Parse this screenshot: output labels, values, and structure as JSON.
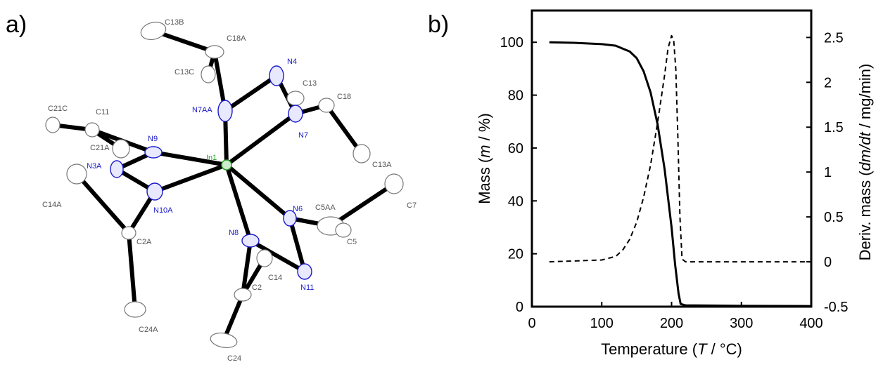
{
  "panel_a": {
    "label": "a)",
    "atoms": {
      "In1": "In1",
      "N4": "N4",
      "N7AA": "N7AA",
      "N7": "N7",
      "N9": "N9",
      "N3A": "N3A",
      "N10A": "N10A",
      "N6": "N6",
      "N8": "N8",
      "N11": "N11",
      "C13B": "C13B",
      "C18A": "C18A",
      "C13C": "C13C",
      "C13": "C13",
      "C18": "C18",
      "C13A": "C13A",
      "C21C": "C21C",
      "C11": "C11",
      "C21A": "C21A",
      "C14A": "C14A",
      "C2A": "C2A",
      "C24A": "C24A",
      "C5AA": "C5AA",
      "C7": "C7",
      "C5": "C5",
      "C14": "C14",
      "C2": "C2",
      "C24": "C24"
    }
  },
  "panel_b": {
    "label": "b)"
  },
  "chart_data": {
    "type": "line",
    "xlabel_parts": [
      "Temperature (",
      "T",
      " / °C)"
    ],
    "ylabel_parts": [
      "Mass (",
      "m",
      " / %)"
    ],
    "y2label_parts": [
      "Deriv. mass (",
      "dm/dt",
      " / mg/min)"
    ],
    "xlim": [
      0,
      400
    ],
    "ylim": [
      0,
      112
    ],
    "y2lim": [
      -0.5,
      2.8
    ],
    "xticks": [
      0,
      100,
      200,
      300,
      400
    ],
    "xtick_labels": [
      "0",
      "100",
      "200",
      "300",
      "400"
    ],
    "yticks": [
      0,
      20,
      40,
      60,
      80,
      100
    ],
    "ytick_labels": [
      "0",
      "20",
      "40",
      "60",
      "80",
      "100"
    ],
    "y2ticks": [
      -0.5,
      0,
      0.5,
      1,
      1.5,
      2,
      2.5
    ],
    "y2tick_labels": [
      "-0.5",
      "0",
      "0.5",
      "1",
      "1.5",
      "2",
      "2.5"
    ],
    "grid": false,
    "series": [
      {
        "axis": "left",
        "style": "solid",
        "color": "#000000",
        "x": [
          25,
          60,
          100,
          120,
          140,
          150,
          160,
          170,
          180,
          190,
          200,
          205,
          210,
          213,
          220,
          300,
          400
        ],
        "y": [
          100,
          99.8,
          99.3,
          98.7,
          96.5,
          94,
          89,
          81,
          69,
          52,
          30,
          16,
          5,
          1,
          0.5,
          0.3,
          0.2
        ]
      },
      {
        "axis": "right",
        "style": "dashed",
        "color": "#000000",
        "x": [
          25,
          100,
          120,
          130,
          140,
          150,
          160,
          170,
          180,
          190,
          195,
          200,
          203,
          206,
          209,
          212,
          215,
          220,
          300,
          400
        ],
        "y": [
          0,
          0.02,
          0.06,
          0.13,
          0.25,
          0.44,
          0.72,
          1.08,
          1.55,
          2.08,
          2.38,
          2.52,
          2.47,
          2.15,
          1.4,
          0.5,
          0.03,
          0,
          0,
          0
        ]
      }
    ]
  }
}
